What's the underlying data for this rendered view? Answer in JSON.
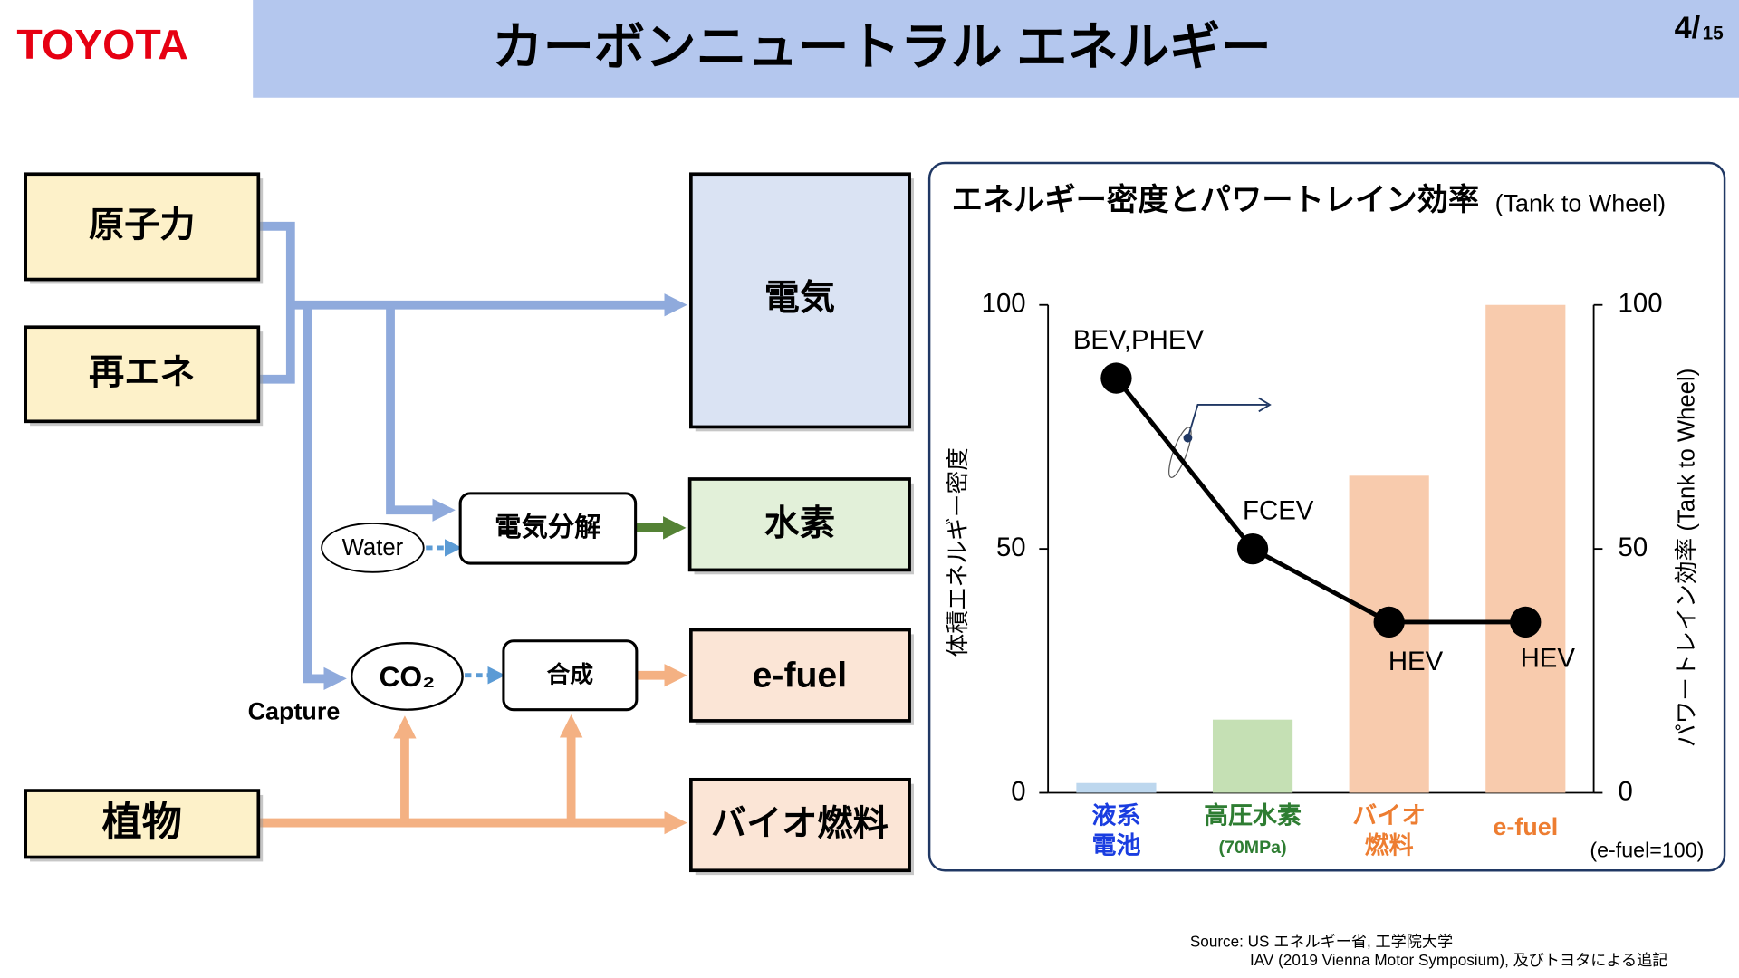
{
  "header": {
    "logo": "TOYOTA",
    "title": "カーボンニュートラル エネルギー",
    "page": "4/",
    "page_total": "15"
  },
  "diagram": {
    "sources": [
      "原子力",
      "再エネ",
      "植物"
    ],
    "outputs": [
      "電気",
      "水素",
      "e-fuel",
      "バイオ燃料"
    ],
    "processes": [
      "電気分解",
      "合成"
    ],
    "inputs": [
      "Water",
      "CO₂"
    ],
    "capture": "Capture"
  },
  "chart_data": {
    "type": "bar",
    "title": "エネルギー密度とパワートレイン効率",
    "subtitle": "(Tank to Wheel)",
    "categories": [
      [
        "液系",
        "電池"
      ],
      [
        "高圧水素"
      ],
      [
        "バイオ",
        "燃料"
      ],
      [
        "e-fuel"
      ]
    ],
    "category_notes": [
      null,
      "(70MPa)",
      null,
      null
    ],
    "label_colors": [
      "#1a3de0",
      "#2e7d32",
      "#ed7d31",
      "#ed7d31"
    ],
    "values": [
      2,
      15,
      65,
      100
    ],
    "colors": [
      "#bdd7ee",
      "#c5e0b4",
      "#f8cbad",
      "#f8cbad"
    ],
    "line": {
      "type": "line",
      "axis": "y2",
      "color": "#000000",
      "values": [
        85,
        50,
        35,
        35
      ],
      "labels": [
        "BEV,PHEV",
        "FCEV",
        "HEV",
        "HEV"
      ]
    },
    "ylabel": "体積エネルギー密度",
    "y2label": "パワートレイン効率 (Tank to Wheel)",
    "ylim": [
      0,
      100
    ],
    "yticks": [
      0,
      50,
      100
    ],
    "y2lim": [
      0,
      100
    ],
    "y2ticks": [
      0,
      50,
      100
    ],
    "note": "(e-fuel=100)"
  },
  "source": [
    "Source: US エネルギー省, 工学院大学",
    "IAV (2019 Vienna Motor Symposium), 及びトヨタによる追記"
  ]
}
